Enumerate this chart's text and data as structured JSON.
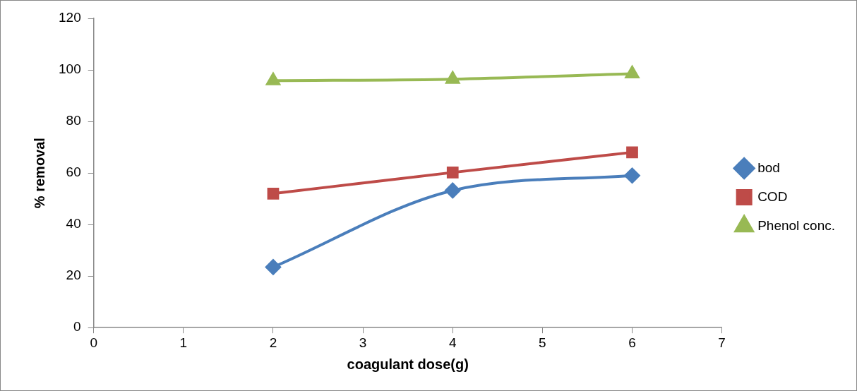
{
  "chart_data": {
    "type": "line",
    "xlabel": "coagulant dose(g)",
    "ylabel": "% removal",
    "x": [
      2,
      4,
      6
    ],
    "xlim": [
      0,
      7
    ],
    "xticks": [
      0,
      1,
      2,
      3,
      4,
      5,
      6,
      7
    ],
    "ylim": [
      0,
      120
    ],
    "yticks": [
      0,
      20,
      40,
      60,
      80,
      100,
      120
    ],
    "series": [
      {
        "name": "bod",
        "color": "#4a7ebb",
        "values": [
          23.5,
          53.2,
          59
        ],
        "marker": "diamond"
      },
      {
        "name": "COD",
        "color": "#be4b48",
        "values": [
          52,
          60.2,
          68
        ],
        "marker": "square"
      },
      {
        "name": "Phenol conc.",
        "color": "#98b954",
        "values": [
          95.8,
          96.4,
          98.5
        ],
        "marker": "triangle"
      }
    ],
    "grid": false,
    "legend": "right",
    "line_style": "solid"
  }
}
